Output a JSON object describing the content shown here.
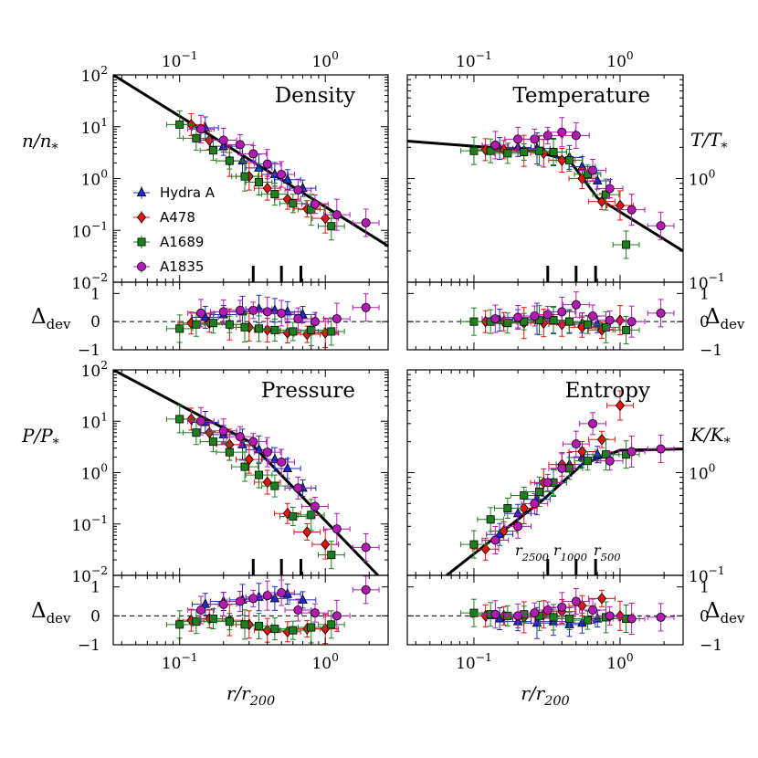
{
  "chart_data": [
    {
      "type": "scatter",
      "panel": "top-left",
      "title": "Density",
      "ylabel": "n/n_*",
      "xscale": "log",
      "yscale": "log",
      "xlim": [
        0.035,
        2.7
      ],
      "ylim": [
        0.01,
        100
      ],
      "x_top_ticks": [
        "10^-1",
        "10^0"
      ],
      "y_ticks": [
        "10^-2",
        "10^-1",
        "10^0",
        "10^1",
        "10^2"
      ],
      "legend": {
        "placement": "lower-left",
        "entries": [
          "Hydra A",
          "A478",
          "A1689",
          "A1835"
        ]
      },
      "model": {
        "x": [
          0.035,
          2.7
        ],
        "y": [
          100,
          0.05
        ]
      },
      "markers_at_x": [
        0.32,
        0.5,
        0.68
      ],
      "series": [
        {
          "name": "Hydra A",
          "x": [
            0.15,
            0.2,
            0.27,
            0.35,
            0.45,
            0.55,
            0.7
          ],
          "y": [
            9.5,
            4.2,
            2.2,
            1.6,
            1.2,
            0.95,
            0.65
          ]
        },
        {
          "name": "A478",
          "x": [
            0.12,
            0.16,
            0.22,
            0.3,
            0.4,
            0.55,
            0.75,
            1.0
          ],
          "y": [
            11,
            5.5,
            2.2,
            1.1,
            0.65,
            0.4,
            0.26,
            0.17
          ]
        },
        {
          "name": "A1689",
          "x": [
            0.1,
            0.13,
            0.17,
            0.22,
            0.28,
            0.35,
            0.45,
            0.6,
            0.8,
            1.1
          ],
          "y": [
            11,
            6,
            3.5,
            2.2,
            1.1,
            0.85,
            0.5,
            0.33,
            0.25,
            0.12
          ]
        },
        {
          "name": "A1835",
          "x": [
            0.14,
            0.2,
            0.26,
            0.32,
            0.4,
            0.5,
            0.65,
            0.85,
            1.2,
            1.9
          ],
          "y": [
            9,
            5.5,
            4.5,
            3,
            1.9,
            1.2,
            0.6,
            0.32,
            0.2,
            0.14
          ]
        }
      ]
    },
    {
      "type": "scatter",
      "panel": "top-right",
      "title": "Temperature",
      "ylabel": "T/T_*",
      "xscale": "log",
      "yscale": "log",
      "xlim": [
        0.035,
        2.7
      ],
      "ylim": [
        0.1,
        10
      ],
      "x_top_ticks": [
        "10^-1",
        "10^0"
      ],
      "y_ticks": [
        "10^-1",
        "10^0"
      ],
      "model": {
        "x": [
          0.035,
          0.25,
          0.45,
          0.7,
          2.7
        ],
        "y": [
          2.3,
          1.85,
          1.5,
          0.65,
          0.2
        ]
      },
      "markers_at_x": [
        0.32,
        0.5,
        0.68
      ],
      "series": [
        {
          "name": "Hydra A",
          "x": [
            0.15,
            0.2,
            0.27,
            0.35,
            0.45,
            0.55,
            0.7
          ],
          "y": [
            1.95,
            2.0,
            1.95,
            1.8,
            1.6,
            1.3,
            0.95
          ]
        },
        {
          "name": "A478",
          "x": [
            0.12,
            0.16,
            0.22,
            0.3,
            0.4,
            0.55,
            0.75,
            1.0
          ],
          "y": [
            1.9,
            1.9,
            1.85,
            1.75,
            1.5,
            1.0,
            0.6,
            0.55
          ]
        },
        {
          "name": "A1689",
          "x": [
            0.1,
            0.13,
            0.17,
            0.22,
            0.28,
            0.35,
            0.45,
            0.6,
            0.8,
            1.1
          ],
          "y": [
            1.85,
            1.85,
            1.75,
            1.8,
            1.85,
            1.8,
            1.5,
            1.1,
            0.7,
            0.23
          ]
        },
        {
          "name": "A1835",
          "x": [
            0.14,
            0.2,
            0.26,
            0.32,
            0.4,
            0.5,
            0.65,
            0.85,
            1.2,
            1.9
          ],
          "y": [
            2.1,
            2.4,
            2.4,
            2.6,
            2.8,
            2.6,
            1.2,
            0.8,
            0.5,
            0.35
          ]
        }
      ]
    },
    {
      "type": "scatter",
      "panel": "bottom-left",
      "title": "Pressure",
      "ylabel": "P/P_*",
      "xlabel": "r/r_200",
      "xscale": "log",
      "yscale": "log",
      "xlim": [
        0.035,
        2.7
      ],
      "ylim": [
        0.01,
        100
      ],
      "x_ticks": [
        "10^-1",
        "10^0"
      ],
      "y_ticks": [
        "10^-2",
        "10^-1",
        "10^0",
        "10^1",
        "10^2"
      ],
      "model": {
        "x": [
          0.035,
          0.3,
          2.3
        ],
        "y": [
          100,
          4,
          0.01
        ]
      },
      "markers_at_x": [
        0.32,
        0.5,
        0.68
      ],
      "series": [
        {
          "name": "Hydra A",
          "x": [
            0.15,
            0.2,
            0.27,
            0.35,
            0.45,
            0.55,
            0.7
          ],
          "y": [
            9.5,
            5.5,
            3.5,
            2.8,
            1.8,
            1.2,
            0.5
          ]
        },
        {
          "name": "A478",
          "x": [
            0.12,
            0.16,
            0.22,
            0.3,
            0.4,
            0.55,
            0.75,
            1.0
          ],
          "y": [
            11,
            6,
            3.5,
            1.8,
            0.65,
            0.16,
            0.07,
            0.04
          ]
        },
        {
          "name": "A1689",
          "x": [
            0.1,
            0.13,
            0.17,
            0.22,
            0.28,
            0.35,
            0.45,
            0.6,
            0.8,
            1.1
          ],
          "y": [
            11,
            6,
            4,
            2.5,
            1.3,
            0.9,
            0.55,
            0.14,
            0.15,
            0.025
          ]
        },
        {
          "name": "A1835",
          "x": [
            0.14,
            0.2,
            0.26,
            0.32,
            0.4,
            0.5,
            0.65,
            0.85,
            1.2,
            1.9
          ],
          "y": [
            10,
            6.5,
            5,
            4,
            2.5,
            1.6,
            0.5,
            0.22,
            0.08,
            0.035
          ]
        }
      ]
    },
    {
      "type": "scatter",
      "panel": "bottom-right",
      "title": "Entropy",
      "ylabel": "K/K_*",
      "xlabel": "r/r_200",
      "xscale": "log",
      "yscale": "log",
      "xlim": [
        0.035,
        2.7
      ],
      "ylim": [
        0.1,
        10
      ],
      "x_ticks": [
        "10^-1",
        "10^0"
      ],
      "y_ticks": [
        "10^-1",
        "10^0"
      ],
      "model": {
        "x": [
          0.065,
          0.3,
          0.55,
          1.0,
          2.7
        ],
        "y": [
          0.1,
          0.55,
          1.2,
          1.65,
          1.7
        ]
      },
      "markers_at_x": [
        0.32,
        0.5,
        0.68
      ],
      "marker_labels": [
        "r_2500",
        "r_1000",
        "r_500"
      ],
      "series": [
        {
          "name": "Hydra A",
          "x": [
            0.15,
            0.2,
            0.27,
            0.35,
            0.45,
            0.55,
            0.7
          ],
          "y": [
            0.25,
            0.4,
            0.55,
            0.8,
            1.2,
            1.4,
            1.5
          ]
        },
        {
          "name": "A478",
          "x": [
            0.12,
            0.16,
            0.22,
            0.3,
            0.4,
            0.55,
            0.75,
            1.0
          ],
          "y": [
            0.18,
            0.27,
            0.45,
            0.8,
            1.2,
            1.6,
            2.1,
            4.5
          ]
        },
        {
          "name": "A1689",
          "x": [
            0.1,
            0.13,
            0.17,
            0.22,
            0.28,
            0.35,
            0.45,
            0.6,
            0.8,
            1.1
          ],
          "y": [
            0.2,
            0.35,
            0.45,
            0.6,
            0.65,
            0.8,
            1.1,
            1.3,
            1.5,
            1.5
          ]
        },
        {
          "name": "A1835",
          "x": [
            0.14,
            0.2,
            0.26,
            0.32,
            0.4,
            0.5,
            0.65,
            0.85,
            1.2,
            1.9
          ],
          "y": [
            0.22,
            0.3,
            0.5,
            0.8,
            1.1,
            1.9,
            3.0,
            1.3,
            1.6,
            1.7
          ]
        }
      ]
    },
    {
      "type": "scatter",
      "panel": "top-left-residual",
      "ylabel": "Δ_dev",
      "xscale": "log",
      "xlim": [
        0.035,
        2.7
      ],
      "ylim": [
        -1,
        1.4
      ],
      "y_ticks": [
        "−1",
        "0",
        "1"
      ],
      "series": [
        {
          "name": "Hydra A",
          "x": [
            0.15,
            0.2,
            0.27,
            0.35,
            0.45,
            0.55,
            0.7
          ],
          "y": [
            0.15,
            0.25,
            0.35,
            0.45,
            0.4,
            0.35,
            0.25
          ]
        },
        {
          "name": "A478",
          "x": [
            0.12,
            0.16,
            0.22,
            0.3,
            0.4,
            0.55,
            0.75,
            1.0
          ],
          "y": [
            -0.05,
            -0.05,
            -0.1,
            -0.2,
            -0.3,
            -0.4,
            -0.45,
            -0.4
          ]
        },
        {
          "name": "A1689",
          "x": [
            0.1,
            0.13,
            0.17,
            0.22,
            0.28,
            0.35,
            0.45,
            0.6,
            0.8,
            1.1
          ],
          "y": [
            -0.25,
            -0.1,
            -0.05,
            -0.1,
            -0.2,
            -0.25,
            -0.3,
            -0.35,
            -0.3,
            -0.35
          ]
        },
        {
          "name": "A1835",
          "x": [
            0.14,
            0.2,
            0.26,
            0.32,
            0.4,
            0.5,
            0.65,
            0.85,
            1.2,
            1.9
          ],
          "y": [
            0.3,
            0.35,
            0.4,
            0.4,
            0.35,
            0.3,
            0.1,
            0.0,
            0.1,
            0.5
          ]
        }
      ]
    },
    {
      "type": "scatter",
      "panel": "top-right-residual",
      "ylabel": "Δ_dev",
      "xscale": "log",
      "xlim": [
        0.035,
        2.7
      ],
      "ylim": [
        -1,
        1.4
      ],
      "y_ticks": [
        "−1",
        "0",
        "1"
      ],
      "series": [
        {
          "name": "Hydra A",
          "x": [
            0.15,
            0.2,
            0.27,
            0.35,
            0.45,
            0.55,
            0.7
          ],
          "y": [
            0.05,
            0.1,
            0.1,
            0.05,
            0.0,
            -0.05,
            -0.1
          ]
        },
        {
          "name": "A478",
          "x": [
            0.12,
            0.16,
            0.22,
            0.3,
            0.4,
            0.55,
            0.75,
            1.0
          ],
          "y": [
            0.0,
            0.0,
            -0.05,
            -0.05,
            -0.1,
            -0.2,
            -0.3,
            0.05
          ]
        },
        {
          "name": "A1689",
          "x": [
            0.1,
            0.13,
            0.17,
            0.22,
            0.28,
            0.35,
            0.45,
            0.6,
            0.8,
            1.1
          ],
          "y": [
            0.0,
            0.0,
            -0.05,
            0.0,
            0.05,
            0.05,
            0.0,
            -0.1,
            -0.2,
            -0.3
          ]
        },
        {
          "name": "A1835",
          "x": [
            0.14,
            0.2,
            0.26,
            0.32,
            0.4,
            0.5,
            0.65,
            0.85,
            1.2,
            1.9
          ],
          "y": [
            0.1,
            0.15,
            0.2,
            0.25,
            0.35,
            0.6,
            0.2,
            0.05,
            0.0,
            0.3
          ]
        }
      ]
    },
    {
      "type": "scatter",
      "panel": "bottom-left-residual",
      "ylabel": "Δ_dev",
      "xscale": "log",
      "xlim": [
        0.035,
        2.7
      ],
      "ylim": [
        -1,
        1.4
      ],
      "y_ticks": [
        "−1",
        "0",
        "1"
      ],
      "series": [
        {
          "name": "Hydra A",
          "x": [
            0.15,
            0.2,
            0.27,
            0.35,
            0.45,
            0.55,
            0.7
          ],
          "y": [
            0.4,
            0.5,
            0.55,
            0.65,
            0.6,
            0.75,
            0.55
          ]
        },
        {
          "name": "A478",
          "x": [
            0.12,
            0.16,
            0.22,
            0.3,
            0.4,
            0.55,
            0.75,
            1.0
          ],
          "y": [
            -0.15,
            -0.1,
            -0.15,
            -0.3,
            -0.5,
            -0.55,
            -0.45,
            -0.45
          ]
        },
        {
          "name": "A1689",
          "x": [
            0.1,
            0.13,
            0.17,
            0.22,
            0.28,
            0.35,
            0.45,
            0.6,
            0.8,
            1.1
          ],
          "y": [
            -0.3,
            -0.2,
            -0.1,
            -0.2,
            -0.3,
            -0.35,
            -0.45,
            -0.5,
            -0.4,
            -0.3
          ]
        },
        {
          "name": "A1835",
          "x": [
            0.14,
            0.2,
            0.26,
            0.32,
            0.4,
            0.5,
            0.65,
            0.85,
            1.2,
            1.9
          ],
          "y": [
            0.2,
            0.4,
            0.5,
            0.6,
            0.7,
            0.8,
            0.2,
            0.1,
            0.0,
            0.9
          ]
        }
      ]
    },
    {
      "type": "scatter",
      "panel": "bottom-right-residual",
      "ylabel": "Δ_dev",
      "xscale": "log",
      "xlim": [
        0.035,
        2.7
      ],
      "ylim": [
        -1,
        1.4
      ],
      "y_ticks": [
        "−1",
        "0",
        "1"
      ],
      "series": [
        {
          "name": "Hydra A",
          "x": [
            0.15,
            0.2,
            0.27,
            0.35,
            0.45,
            0.55,
            0.7
          ],
          "y": [
            -0.1,
            -0.2,
            -0.25,
            -0.2,
            -0.3,
            -0.25,
            -0.1
          ]
        },
        {
          "name": "A478",
          "x": [
            0.12,
            0.16,
            0.22,
            0.3,
            0.4,
            0.55,
            0.75,
            1.0
          ],
          "y": [
            0.0,
            0.0,
            -0.05,
            0.05,
            0.15,
            0.35,
            0.6,
            0.0
          ]
        },
        {
          "name": "A1689",
          "x": [
            0.1,
            0.13,
            0.17,
            0.22,
            0.28,
            0.35,
            0.45,
            0.6,
            0.8,
            1.1
          ],
          "y": [
            0.1,
            0.05,
            0.0,
            0.05,
            0.0,
            -0.05,
            -0.1,
            -0.15,
            -0.05,
            -0.1
          ]
        },
        {
          "name": "A1835",
          "x": [
            0.14,
            0.2,
            0.26,
            0.32,
            0.4,
            0.5,
            0.65,
            0.85,
            1.2,
            1.9
          ],
          "y": [
            0.05,
            0.0,
            0.1,
            0.2,
            0.3,
            0.5,
            0.2,
            0.0,
            -0.1,
            -0.05
          ]
        }
      ]
    }
  ],
  "series_style": {
    "Hydra A": {
      "color": "#1f28c8",
      "marker": "triangle"
    },
    "A478": {
      "color": "#e8120c",
      "marker": "diamond"
    },
    "A1689": {
      "color": "#1e7f1e",
      "marker": "square"
    },
    "A1835": {
      "color": "#b21ab2",
      "marker": "circle"
    }
  }
}
